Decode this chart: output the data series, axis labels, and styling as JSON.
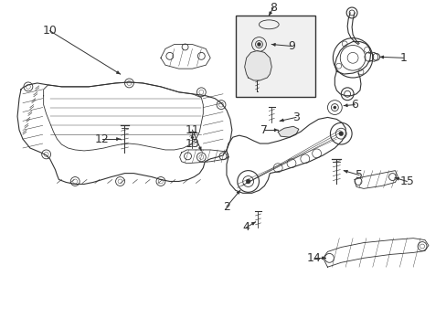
{
  "bg_color": "#ffffff",
  "line_color": "#333333",
  "figsize": [
    4.89,
    3.6
  ],
  "dpi": 100,
  "font_size": 9,
  "font_size_sm": 8
}
